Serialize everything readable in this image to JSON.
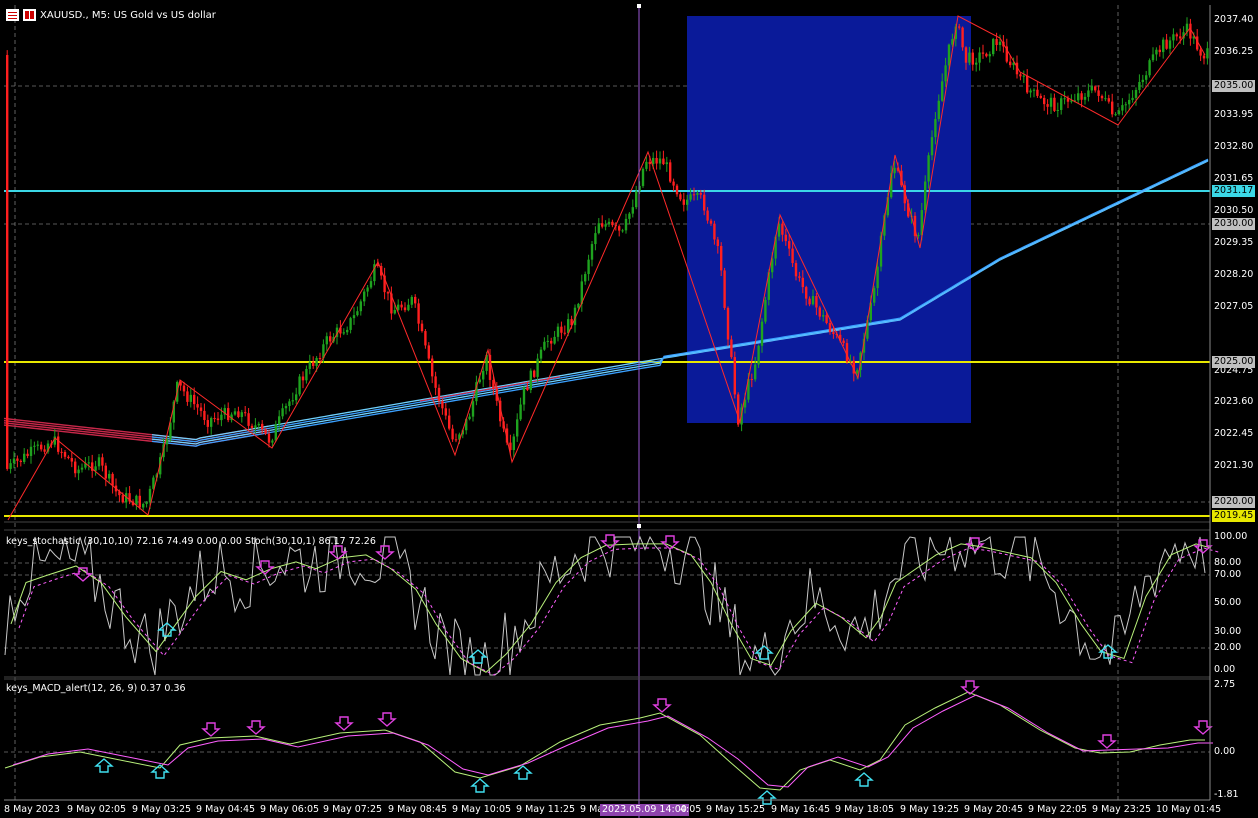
{
  "window": {
    "title": "XAUUSD., M5:  US Gold vs US dollar",
    "icons": [
      "chart-menu-icon",
      "one-click-trading-icon"
    ]
  },
  "main_chart": {
    "price_axis_labels": [
      "2037.40",
      "2036.25",
      "2033.95",
      "2032.80",
      "2031.65",
      "2030.50",
      "2029.35",
      "2028.20",
      "2027.05",
      "2024.75",
      "2023.60",
      "2022.45",
      "2021.30"
    ],
    "price_tags": [
      {
        "text": "2035.00",
        "kind": "gray"
      },
      {
        "text": "2031.17",
        "kind": "cyan"
      },
      {
        "text": "2030.00",
        "kind": "gray"
      },
      {
        "text": "2025.00",
        "kind": "gray"
      },
      {
        "text": "2020.00",
        "kind": "gray"
      },
      {
        "text": "2019.45",
        "kind": "yellow"
      }
    ]
  },
  "stochastic": {
    "label": "keys_stochastic (30,10,10) 72.16 74.49 0.00 0.00 Stoch(30,10,1) 86.17 72.26",
    "axis_labels": [
      "100.00",
      "80.00",
      "70.00",
      "50.00",
      "30.00",
      "20.00",
      "0.00"
    ]
  },
  "macd": {
    "label": "keys_MACD_alert(12, 26, 9) 0.37 0.36",
    "axis_labels": [
      "2.75",
      "0.00",
      "-1.81"
    ]
  },
  "time_axis": {
    "labels": [
      "8 May 2023",
      "9 May 02:05",
      "9 May 03:25",
      "9 May 04:45",
      "9 May 06:05",
      "9 May 07:25",
      "9 May 08:45",
      "9 May 10:05",
      "9 May 11:25",
      "9 Ma",
      "9 May 15:25",
      "9 May 16:45",
      "9 May 18:05",
      "9 May 19:25",
      "9 May 20:45",
      "9 May 22:05",
      "9 May 23:25",
      "10 May 01:45"
    ],
    "crosshair_tag": "2023.05.09 14:00",
    "crosshair_tail": "4:05"
  },
  "colors": {
    "background": "#000000",
    "bull": "#1fa31f",
    "bear": "#ff1f1f",
    "highlight_box": "#0a1a99",
    "cyan_line": "#3bd7e6",
    "yellow_line": "#e8e800",
    "crosshair": "#9b59d6",
    "ma_red": "#c8284a",
    "ma_blue": "#3aa0ff"
  }
}
